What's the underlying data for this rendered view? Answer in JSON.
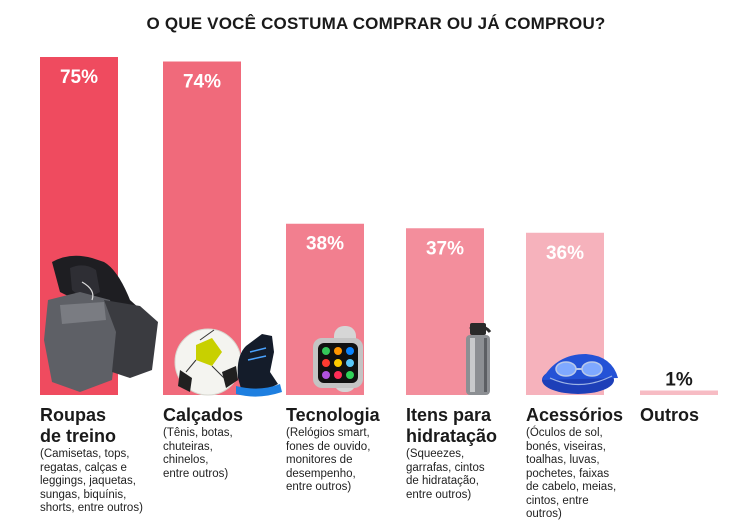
{
  "title": "O QUE VOCÊ COSTUMA COMPRAR OU JÁ COMPROU?",
  "chart_data": {
    "type": "bar",
    "title": "O QUE VOCÊ COSTUMA COMPRAR OU JÁ COMPROU?",
    "categories": [
      "Roupas de treino",
      "Calçados",
      "Tecnologia",
      "Itens para hidratação",
      "Acessórios",
      "Outros"
    ],
    "category_lines": [
      [
        "Roupas",
        "de treino"
      ],
      [
        "Calçados"
      ],
      [
        "Tecnologia"
      ],
      [
        "Itens para",
        "hidratação"
      ],
      [
        "Acessórios"
      ],
      [
        "Outros"
      ]
    ],
    "descriptions": [
      [
        "(Camisetas, tops,",
        "regatas, calças e",
        "leggings, jaquetas,",
        "sungas, biquínis,",
        "shorts, entre outros)"
      ],
      [
        "(Tênis, botas,",
        "chuteiras,",
        "chinelos,",
        "entre outros)"
      ],
      [
        "(Relógios smart,",
        "fones de ouvido,",
        "monitores de",
        "desempenho,",
        "entre outros)"
      ],
      [
        "(Squeezes,",
        "garrafas, cintos",
        "de hidratação,",
        "entre outros)"
      ],
      [
        "(Óculos de sol,",
        "bonés, viseiras,",
        "toalhas, luvas,",
        "pochetes, faixas",
        "de cabelo, meias,",
        "cintos, entre",
        "outros)"
      ],
      []
    ],
    "values": [
      75,
      74,
      38,
      37,
      36,
      1
    ],
    "value_labels": [
      "75%",
      "74%",
      "38%",
      "37%",
      "36%",
      "1%"
    ],
    "ylim": [
      0,
      75
    ],
    "colors": [
      "#ef4b5f",
      "#f06a7b",
      "#f27f8f",
      "#f38e9c",
      "#f6b2bc",
      "#f7bcc4"
    ],
    "item_icons": [
      "training-clothes-icon",
      "sneakers-ball-icon",
      "smartwatch-icon",
      "water-bottle-icon",
      "swim-goggles-cap-icon",
      ""
    ],
    "grid": false,
    "legend": "none"
  }
}
